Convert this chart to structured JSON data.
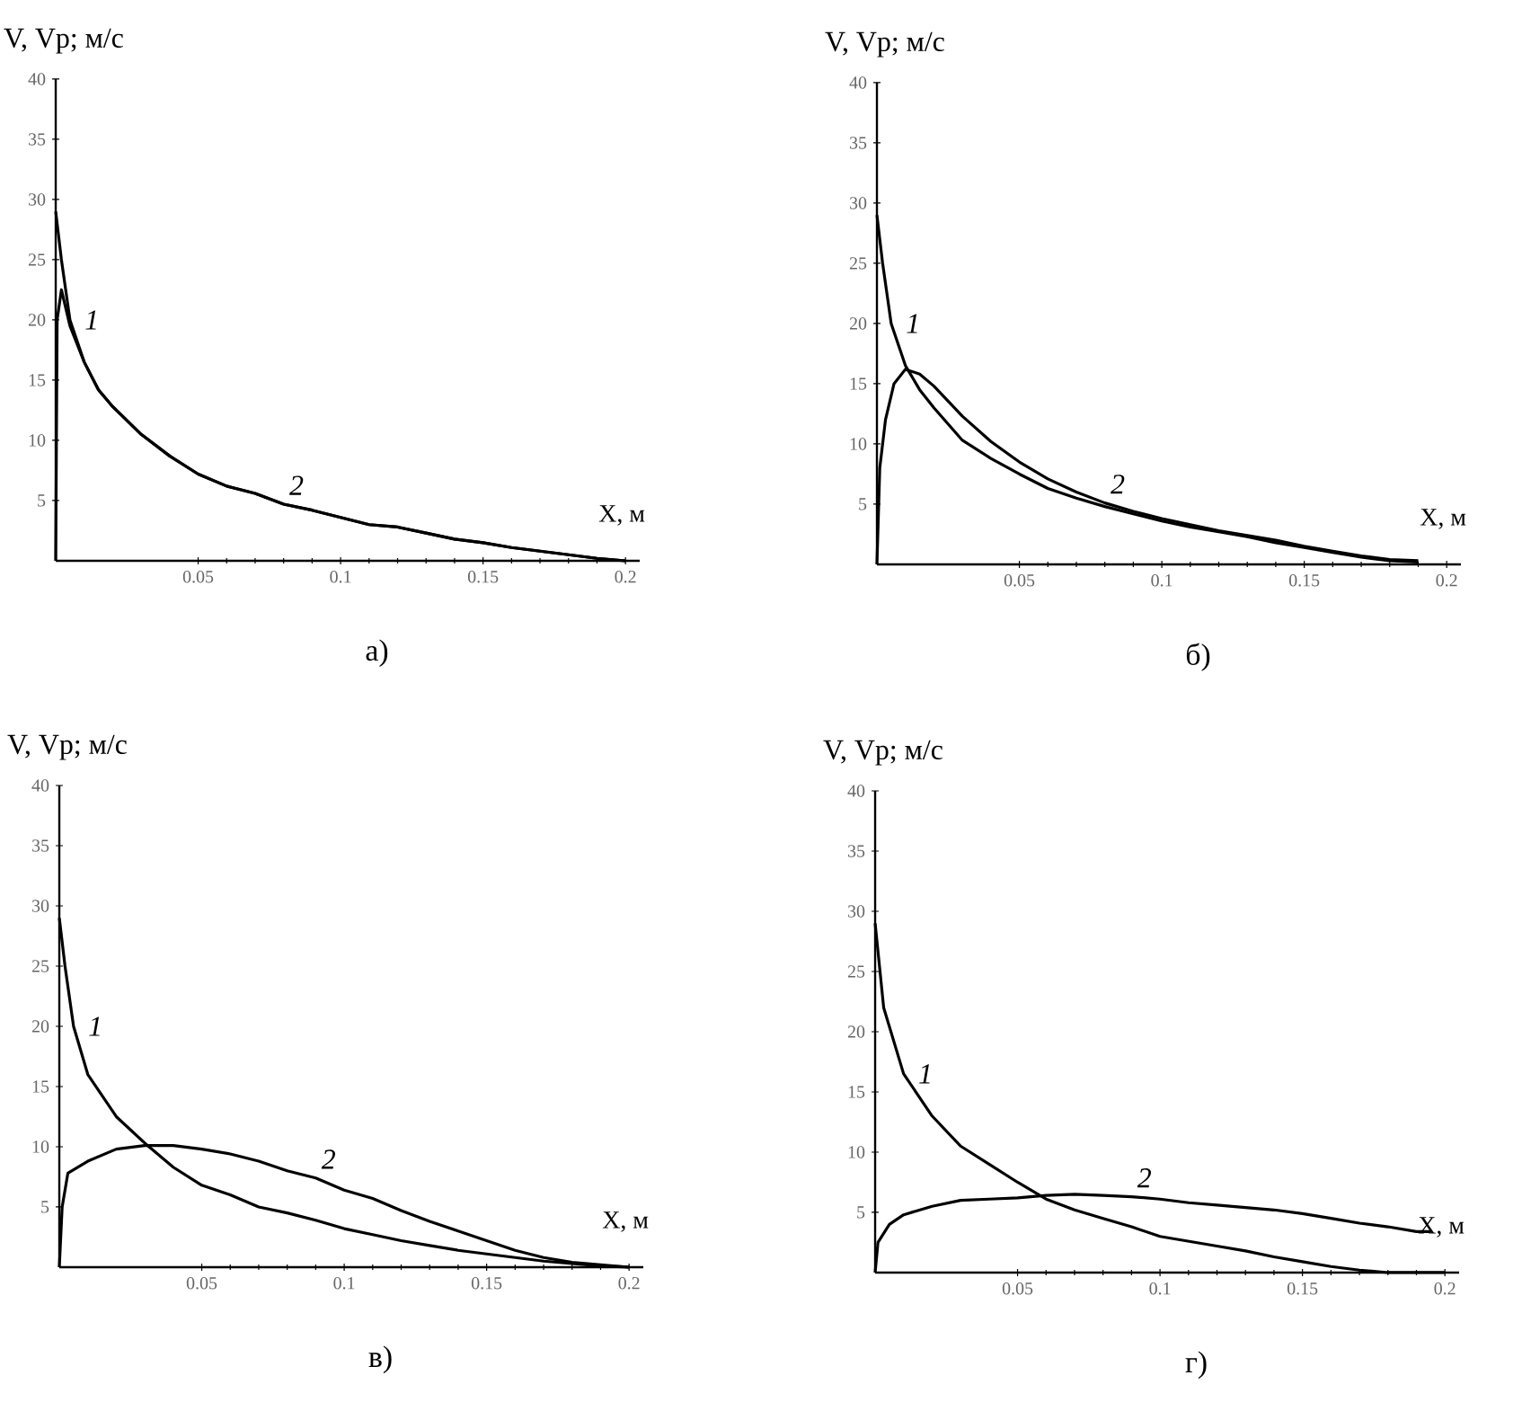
{
  "chart_data": [
    {
      "type": "line",
      "title": "а)",
      "xlabel": "X, м",
      "ylabel": "V, Vp; м/с",
      "xlim": [
        0,
        0.205
      ],
      "ylim": [
        0,
        40
      ],
      "xticks": [
        0.05,
        0.1,
        0.15,
        0.2
      ],
      "yticks": [
        5,
        10,
        15,
        20,
        25,
        30,
        35,
        40
      ],
      "line_style": "solid",
      "marker": "none",
      "series": [
        {
          "name": "1",
          "color": "#000000",
          "x": [
            0,
            0.002,
            0.005,
            0.01,
            0.015,
            0.02,
            0.03,
            0.04,
            0.05,
            0.06,
            0.07,
            0.08,
            0.09,
            0.1,
            0.11,
            0.12,
            0.13,
            0.14,
            0.15,
            0.16,
            0.17,
            0.18,
            0.19,
            0.2
          ],
          "values": [
            29,
            25,
            20,
            16.5,
            14.2,
            12.8,
            10.5,
            8.7,
            7.2,
            6.2,
            5.6,
            4.7,
            4.2,
            3.6,
            3.0,
            2.8,
            2.3,
            1.8,
            1.5,
            1.1,
            0.8,
            0.5,
            0.2,
            0
          ]
        },
        {
          "name": "2",
          "color": "#000000",
          "x": [
            0,
            0.0005,
            0.002,
            0.003,
            0.005,
            0.01,
            0.015,
            0.02,
            0.03,
            0.04,
            0.05,
            0.06,
            0.07,
            0.08,
            0.09,
            0.1,
            0.11,
            0.12,
            0.13,
            0.14,
            0.15,
            0.16,
            0.17,
            0.18,
            0.19,
            0.2
          ],
          "values": [
            0,
            20,
            22.5,
            21.5,
            19.5,
            16.5,
            14.2,
            12.8,
            10.5,
            8.7,
            7.2,
            6.2,
            5.6,
            4.7,
            4.2,
            3.6,
            3.0,
            2.8,
            2.3,
            1.8,
            1.5,
            1.1,
            0.8,
            0.5,
            0.2,
            0
          ]
        }
      ]
    },
    {
      "type": "line",
      "title": "б)",
      "xlabel": "X, м",
      "ylabel": "V, Vp; м/с",
      "xlim": [
        0,
        0.205
      ],
      "ylim": [
        0,
        40
      ],
      "xticks": [
        0.05,
        0.1,
        0.15,
        0.2
      ],
      "yticks": [
        5,
        10,
        15,
        20,
        25,
        30,
        35,
        40
      ],
      "line_style": "solid",
      "marker": "none",
      "series": [
        {
          "name": "1",
          "color": "#000000",
          "x": [
            0,
            0.002,
            0.005,
            0.01,
            0.015,
            0.02,
            0.03,
            0.04,
            0.05,
            0.06,
            0.07,
            0.08,
            0.09,
            0.1,
            0.11,
            0.12,
            0.13,
            0.14,
            0.15,
            0.16,
            0.17,
            0.18,
            0.19
          ],
          "values": [
            29,
            25,
            20,
            16.5,
            14.5,
            13,
            10.3,
            8.8,
            7.5,
            6.3,
            5.5,
            4.8,
            4.2,
            3.6,
            3.1,
            2.7,
            2.3,
            1.8,
            1.4,
            1.0,
            0.6,
            0.3,
            0.2
          ]
        },
        {
          "name": "2",
          "color": "#000000",
          "x": [
            0,
            0.001,
            0.003,
            0.006,
            0.01,
            0.015,
            0.02,
            0.03,
            0.04,
            0.05,
            0.06,
            0.07,
            0.08,
            0.09,
            0.1,
            0.11,
            0.12,
            0.13,
            0.14,
            0.15,
            0.16,
            0.17,
            0.18,
            0.19
          ],
          "values": [
            0,
            8,
            12,
            15,
            16.2,
            15.8,
            14.8,
            12.3,
            10.2,
            8.5,
            7.1,
            6.0,
            5.1,
            4.4,
            3.8,
            3.3,
            2.8,
            2.4,
            2.0,
            1.5,
            1.1,
            0.7,
            0.4,
            0.3
          ]
        }
      ]
    },
    {
      "type": "line",
      "title": "в)",
      "xlabel": "X, м",
      "ylabel": "V, Vp; м/с",
      "xlim": [
        0,
        0.205
      ],
      "ylim": [
        0,
        40
      ],
      "xticks": [
        0.05,
        0.1,
        0.15,
        0.2
      ],
      "yticks": [
        5,
        10,
        15,
        20,
        25,
        30,
        35,
        40
      ],
      "line_style": "solid",
      "marker": "none",
      "series": [
        {
          "name": "1",
          "color": "#000000",
          "x": [
            0,
            0.002,
            0.005,
            0.01,
            0.02,
            0.03,
            0.04,
            0.05,
            0.06,
            0.07,
            0.08,
            0.09,
            0.1,
            0.11,
            0.12,
            0.13,
            0.14,
            0.15,
            0.16,
            0.17,
            0.18,
            0.19,
            0.2
          ],
          "values": [
            29,
            25,
            20,
            16,
            12.5,
            10.3,
            8.3,
            6.8,
            6.0,
            5.0,
            4.5,
            3.9,
            3.2,
            2.7,
            2.2,
            1.8,
            1.4,
            1.1,
            0.8,
            0.5,
            0.3,
            0.1,
            0
          ]
        },
        {
          "name": "2",
          "color": "#000000",
          "x": [
            0,
            0.001,
            0.003,
            0.01,
            0.02,
            0.03,
            0.04,
            0.05,
            0.06,
            0.07,
            0.08,
            0.09,
            0.1,
            0.11,
            0.12,
            0.13,
            0.14,
            0.15,
            0.16,
            0.17,
            0.18,
            0.19,
            0.2
          ],
          "values": [
            0,
            5,
            7.8,
            8.8,
            9.8,
            10.1,
            10.1,
            9.8,
            9.4,
            8.8,
            8.0,
            7.4,
            6.4,
            5.7,
            4.7,
            3.8,
            3.0,
            2.2,
            1.4,
            0.8,
            0.4,
            0.2,
            0
          ]
        }
      ]
    },
    {
      "type": "line",
      "title": "г)",
      "xlabel": "X, м",
      "ylabel": "V, Vp; м/с",
      "xlim": [
        0,
        0.205
      ],
      "ylim": [
        0,
        40
      ],
      "xticks": [
        0.05,
        0.1,
        0.15,
        0.2
      ],
      "yticks": [
        5,
        10,
        15,
        20,
        25,
        30,
        35,
        40
      ],
      "line_style": "solid",
      "marker": "none",
      "series": [
        {
          "name": "1",
          "color": "#000000",
          "x": [
            0,
            0.003,
            0.01,
            0.02,
            0.03,
            0.04,
            0.05,
            0.06,
            0.07,
            0.08,
            0.09,
            0.1,
            0.11,
            0.12,
            0.13,
            0.14,
            0.15,
            0.16,
            0.17,
            0.18,
            0.2
          ],
          "values": [
            29,
            22,
            16.5,
            13,
            10.5,
            9.0,
            7.5,
            6.1,
            5.2,
            4.5,
            3.8,
            3.0,
            2.6,
            2.2,
            1.8,
            1.3,
            0.9,
            0.5,
            0.2,
            0,
            0
          ]
        },
        {
          "name": "2",
          "color": "#000000",
          "x": [
            0,
            0.001,
            0.005,
            0.01,
            0.02,
            0.03,
            0.04,
            0.05,
            0.06,
            0.07,
            0.08,
            0.09,
            0.1,
            0.11,
            0.12,
            0.13,
            0.14,
            0.15,
            0.16,
            0.17,
            0.18,
            0.19,
            0.195
          ],
          "values": [
            0,
            2.5,
            4.0,
            4.8,
            5.5,
            6.0,
            6.1,
            6.2,
            6.4,
            6.5,
            6.4,
            6.3,
            6.1,
            5.8,
            5.6,
            5.4,
            5.2,
            4.9,
            4.5,
            4.1,
            3.8,
            3.4,
            3.4
          ]
        }
      ]
    }
  ]
}
